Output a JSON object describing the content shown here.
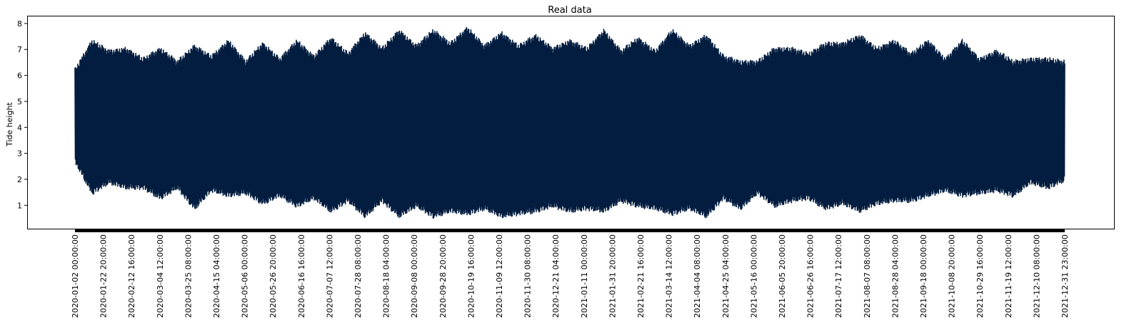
{
  "chart_data": {
    "type": "line",
    "title": "Real data",
    "xlabel": "",
    "ylabel": "Tide height",
    "ylim": [
      0.1,
      8.3
    ],
    "yticks": [
      1,
      2,
      3,
      4,
      5,
      6,
      7,
      8
    ],
    "x_range": [
      "2020-01-02 00:00:00",
      "2021-12-31 23:00:00"
    ],
    "x_tick_labels": [
      "2020-01-02 00:00:00",
      "2020-01-22 20:00:00",
      "2020-02-12 16:00:00",
      "2020-03-04 12:00:00",
      "2020-03-25 08:00:00",
      "2020-04-15 04:00:00",
      "2020-05-06 00:00:00",
      "2020-05-26 20:00:00",
      "2020-06-16 16:00:00",
      "2020-07-07 12:00:00",
      "2020-07-28 08:00:00",
      "2020-08-18 04:00:00",
      "2020-09-08 00:00:00",
      "2020-09-28 20:00:00",
      "2020-10-19 16:00:00",
      "2020-11-09 12:00:00",
      "2020-11-30 08:00:00",
      "2020-12-21 04:00:00",
      "2021-01-11 00:00:00",
      "2021-01-31 20:00:00",
      "2021-02-21 16:00:00",
      "2021-03-14 12:00:00",
      "2021-04-04 08:00:00",
      "2021-04-25 04:00:00",
      "2021-05-16 00:00:00",
      "2021-06-05 20:00:00",
      "2021-06-26 16:00:00",
      "2021-07-17 12:00:00",
      "2021-08-07 08:00:00",
      "2021-08-28 04:00:00",
      "2021-09-18 00:00:00",
      "2021-10-08 20:00:00",
      "2021-10-29 16:00:00",
      "2021-11-19 12:00:00",
      "2021-12-10 08:00:00",
      "2021-12-31 23:00:00"
    ],
    "series": [
      {
        "color": "#021d3f",
        "envelope_max": [
          6.3,
          7.4,
          7.0,
          7.1,
          6.7,
          7.1,
          6.6,
          7.2,
          6.8,
          7.4,
          6.6,
          7.3,
          6.7,
          7.4,
          6.8,
          7.5,
          6.9,
          7.7,
          7.1,
          7.8,
          7.2,
          7.8,
          7.3,
          7.9,
          7.2,
          7.7,
          7.2,
          7.6,
          7.1,
          7.4,
          7.1,
          7.8,
          7.0,
          7.5,
          7.0,
          7.8,
          7.2,
          7.6,
          6.8,
          6.6,
          6.6,
          7.1,
          7.1,
          6.9,
          7.3,
          7.3,
          7.6,
          7.1,
          7.4,
          6.9,
          7.4,
          6.7,
          7.4,
          6.7,
          7.0,
          6.6,
          6.7,
          6.7,
          6.6
        ],
        "envelope_min": [
          2.6,
          1.4,
          1.8,
          1.6,
          1.6,
          1.2,
          1.6,
          0.8,
          1.5,
          1.3,
          1.4,
          1.0,
          1.3,
          0.9,
          1.2,
          0.7,
          1.1,
          0.5,
          1.1,
          0.5,
          0.9,
          0.5,
          0.7,
          0.6,
          0.8,
          0.5,
          0.6,
          0.7,
          0.9,
          0.7,
          0.8,
          0.7,
          1.1,
          0.9,
          0.8,
          0.6,
          0.8,
          0.5,
          1.2,
          0.8,
          1.4,
          0.9,
          1.1,
          1.2,
          0.8,
          1.0,
          0.7,
          1.0,
          1.1,
          1.1,
          1.3,
          1.5,
          1.3,
          1.4,
          1.5,
          1.3,
          1.8,
          1.6,
          1.9
        ]
      }
    ]
  }
}
